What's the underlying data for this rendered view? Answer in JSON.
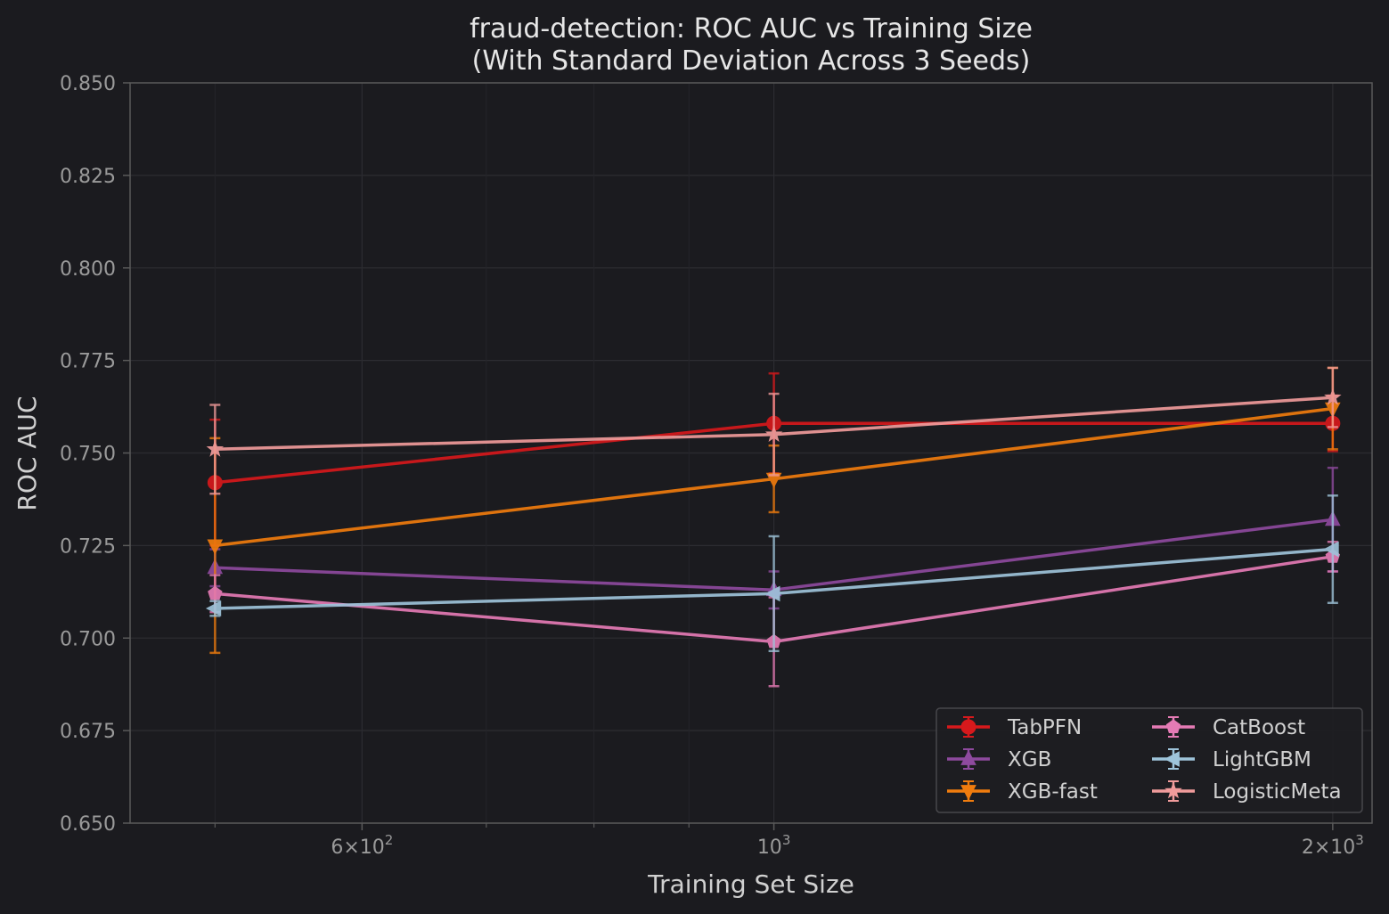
{
  "chart_data": {
    "type": "line",
    "title": "fraud-detection: ROC AUC vs Training Size",
    "subtitle": "(With Standard Deviation Across 3 Seeds)",
    "xlabel": "Training Set Size",
    "ylabel": "ROC AUC",
    "x_scale": "log",
    "x": [
      500,
      1000,
      2000
    ],
    "xlim": [
      450,
      2100
    ],
    "ylim": [
      0.65,
      0.85
    ],
    "y_ticks": [
      "0.650",
      "0.675",
      "0.700",
      "0.725",
      "0.750",
      "0.775",
      "0.800",
      "0.825",
      "0.850"
    ],
    "x_tick_labels": [
      {
        "value": 600,
        "base": "6×10",
        "exp": "2"
      },
      {
        "value": 1000,
        "base": "10",
        "exp": "3"
      },
      {
        "value": 2000,
        "base": "2×10",
        "exp": "3"
      }
    ],
    "x_minor_ticks": [
      500,
      700,
      800,
      900
    ],
    "grid": true,
    "legend_position": "bottom-right",
    "background": "#1b1b1f",
    "series": [
      {
        "name": "TabPFN",
        "color": "#d7191c",
        "marker": "circle",
        "values": [
          0.742,
          0.758,
          0.758
        ],
        "std": [
          0.017,
          0.0135,
          0.0075
        ]
      },
      {
        "name": "XGB",
        "color": "#8e4a9e",
        "marker": "triangle-up",
        "values": [
          0.719,
          0.713,
          0.732
        ],
        "std": [
          0.005,
          0.005,
          0.014
        ]
      },
      {
        "name": "XGB-fast",
        "color": "#f07c0e",
        "marker": "triangle-down",
        "values": [
          0.725,
          0.743,
          0.762
        ],
        "std": [
          0.029,
          0.009,
          0.011
        ]
      },
      {
        "name": "CatBoost",
        "color": "#e57bb5",
        "marker": "pentagon",
        "values": [
          0.712,
          0.699,
          0.722
        ],
        "std": [
          0.005,
          0.012,
          0.004
        ]
      },
      {
        "name": "LightGBM",
        "color": "#9ec4da",
        "marker": "triangle-left",
        "values": [
          0.708,
          0.712,
          0.724
        ],
        "std": [
          0.002,
          0.0155,
          0.0145
        ]
      },
      {
        "name": "LogisticMeta",
        "color": "#f09b9b",
        "marker": "star",
        "values": [
          0.751,
          0.755,
          0.765
        ],
        "std": [
          0.012,
          0.011,
          0.008
        ]
      }
    ]
  }
}
